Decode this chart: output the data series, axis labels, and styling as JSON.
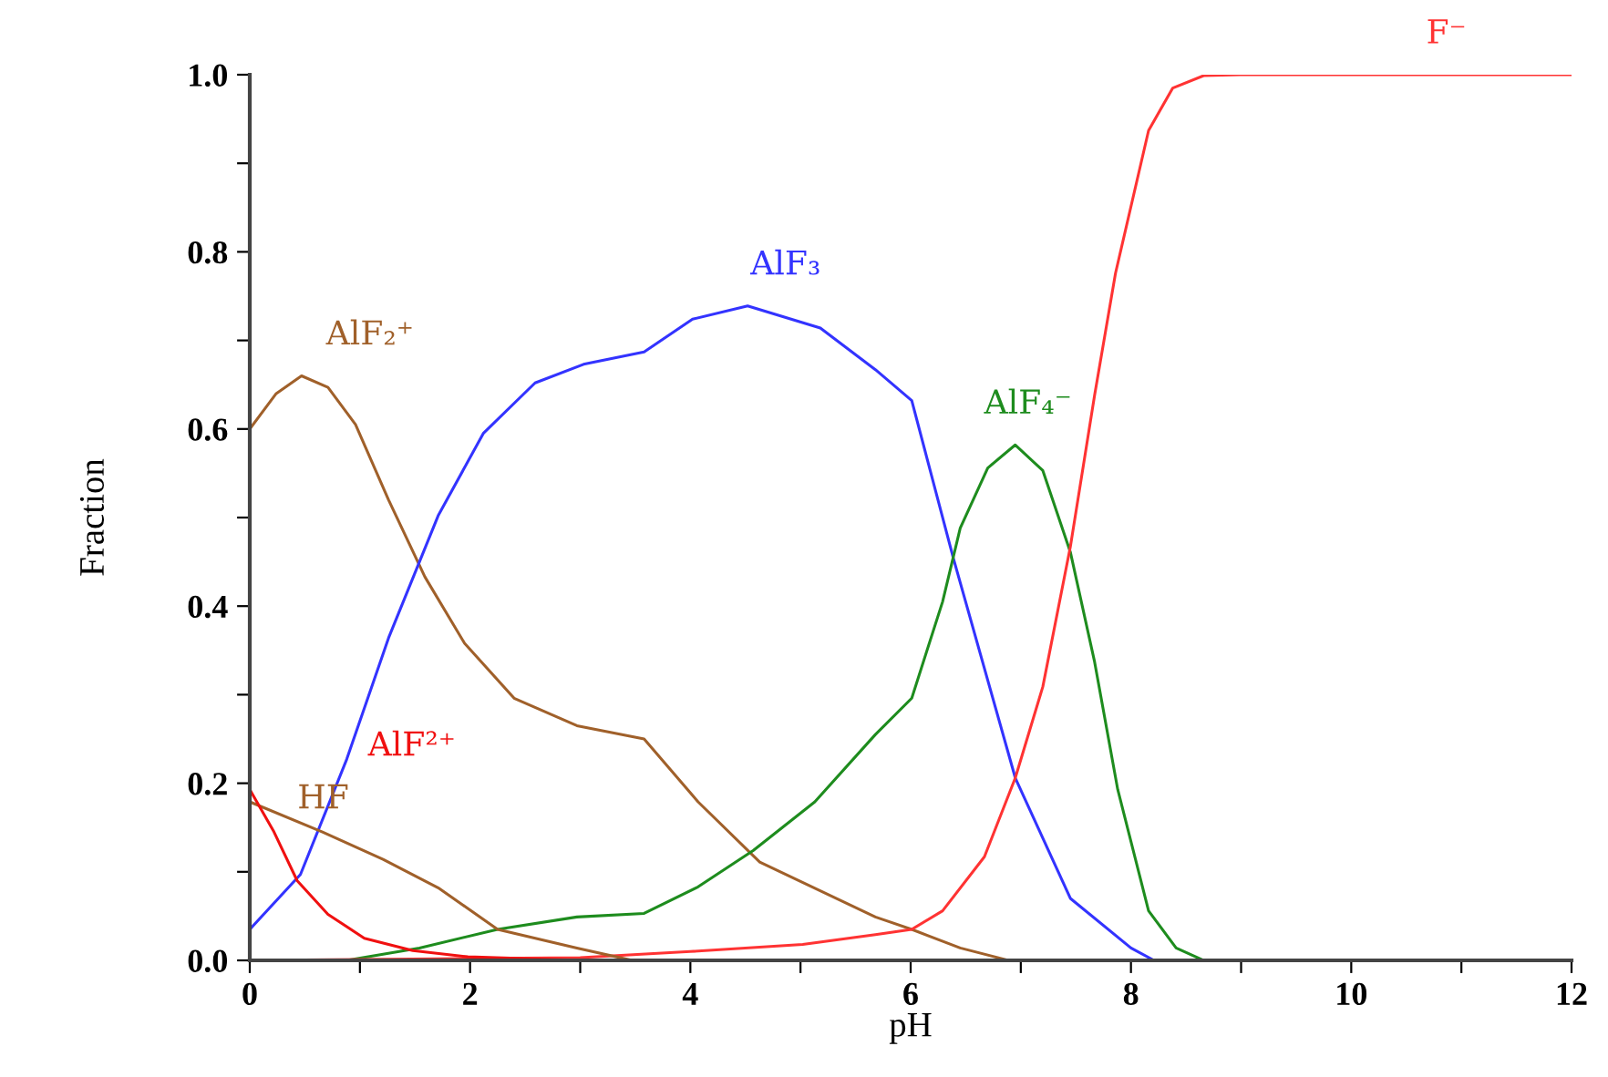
{
  "chart_data": {
    "type": "line",
    "xlabel": "pH",
    "ylabel": "Fraction",
    "xlim": [
      0,
      12
    ],
    "ylim": [
      0,
      1
    ],
    "xticks": [
      0,
      {
        "value": 1,
        "label": null
      },
      2,
      {
        "value": 3,
        "label": null
      },
      4,
      {
        "value": 5,
        "label": null
      },
      6,
      {
        "value": 7,
        "label": null
      },
      8,
      {
        "value": 9,
        "label": null
      },
      10,
      {
        "value": 11,
        "label": null
      },
      12
    ],
    "yticks": [
      {
        "value": 0,
        "label": "0.0"
      },
      {
        "value": 0.1,
        "label": null
      },
      0.2,
      {
        "value": 0.3,
        "label": null
      },
      0.4,
      {
        "value": 0.5,
        "label": null
      },
      0.6,
      {
        "value": 0.7,
        "label": null
      },
      0.8,
      {
        "value": 0.9,
        "label": null
      },
      {
        "value": 1,
        "label": "1.0"
      }
    ],
    "grid": false,
    "legend": false,
    "marker": "none",
    "line_style": "solid",
    "series": [
      {
        "name": "AlF₂⁺",
        "color": "#a0602a",
        "x": [
          0,
          0.24,
          0.47,
          0.71,
          0.96,
          1.26,
          1.59,
          1.95,
          2.4,
          2.97,
          3.58,
          4.07,
          4.63,
          5.68,
          6.01,
          6.45,
          6.89
        ],
        "values": [
          0.6,
          0.64,
          0.66,
          0.647,
          0.605,
          0.52,
          0.433,
          0.358,
          0.296,
          0.265,
          0.25,
          0.179,
          0.111,
          0.049,
          0.035,
          0.014,
          0
        ]
      },
      {
        "name": "AlF₃",
        "color": "#3333ff",
        "x": [
          0,
          0.46,
          0.88,
          1.26,
          1.71,
          2.12,
          2.59,
          3.03,
          3.58,
          4.02,
          4.52,
          5.18,
          5.68,
          6.01,
          6.39,
          6.95,
          7.45,
          8.0,
          8.21
        ],
        "values": [
          0.035,
          0.097,
          0.227,
          0.364,
          0.502,
          0.595,
          0.652,
          0.673,
          0.687,
          0.724,
          0.739,
          0.714,
          0.667,
          0.632,
          0.453,
          0.206,
          0.07,
          0.014,
          0
        ]
      },
      {
        "name": "AlF₄⁻",
        "color": "#1e8c1e",
        "x": [
          0.88,
          1.54,
          2.25,
          2.97,
          3.58,
          4.07,
          4.57,
          5.13,
          5.68,
          6.01,
          6.29,
          6.45,
          6.7,
          6.95,
          7.2,
          7.45,
          7.67,
          7.88,
          8.16,
          8.41,
          8.66
        ],
        "values": [
          0,
          0.014,
          0.035,
          0.049,
          0.053,
          0.083,
          0.124,
          0.179,
          0.255,
          0.296,
          0.405,
          0.488,
          0.556,
          0.582,
          0.553,
          0.461,
          0.337,
          0.193,
          0.056,
          0.014,
          0
        ]
      },
      {
        "name": "F⁻",
        "color": "#ff3333",
        "x": [
          0,
          3,
          4,
          5.02,
          5.68,
          6.01,
          6.29,
          6.67,
          6.95,
          7.2,
          7.45,
          7.67,
          7.86,
          8.16,
          8.38,
          8.66,
          8.99,
          12
        ],
        "values": [
          0,
          0.003,
          0.01,
          0.018,
          0.029,
          0.035,
          0.056,
          0.117,
          0.206,
          0.309,
          0.467,
          0.638,
          0.776,
          0.937,
          0.985,
          0.999,
          1.0,
          1.0
        ]
      },
      {
        "name": "HF",
        "color": "#a0602a",
        "x": [
          0,
          0.66,
          1.21,
          1.71,
          2.25,
          2.97,
          3.47
        ],
        "values": [
          0.179,
          0.145,
          0.114,
          0.082,
          0.035,
          0.014,
          0
        ]
      },
      {
        "name": "AlF²⁺",
        "color": "#f01010",
        "x": [
          0,
          0.22,
          0.43,
          0.71,
          1.04,
          1.48,
          1.98,
          3.0
        ],
        "values": [
          0.193,
          0.145,
          0.09,
          0.052,
          0.025,
          0.011,
          0.004,
          0
        ]
      }
    ]
  }
}
